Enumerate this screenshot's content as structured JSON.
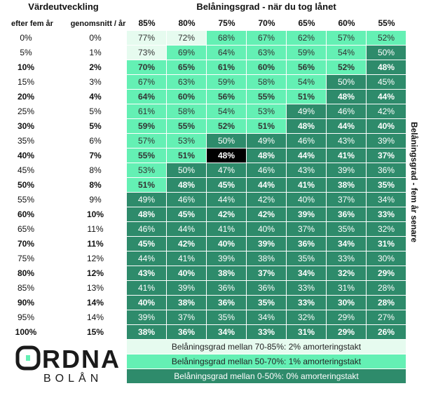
{
  "header": {
    "left_title": "Värdeutveckling",
    "right_title": "Belåningsgrad - när du tog lånet",
    "col_a_label": "efter fem år",
    "col_b_label": "genomsnitt / år",
    "side_label": "Belåningsgrad - fem år senare"
  },
  "chart_data": {
    "type": "heatmap",
    "title": "Belåningsgrad - när du tog lånet",
    "x_label": "Belåningsgrad - när du tog lånet",
    "y_label": "Värdeutveckling",
    "values_label": "Belåningsgrad - fem år senare",
    "columns": [
      "85%",
      "80%",
      "75%",
      "70%",
      "65%",
      "60%",
      "55%"
    ],
    "rows": [
      {
        "efter": "0%",
        "snitt": "0%",
        "bold": false,
        "values": [
          "77%",
          "72%",
          "68%",
          "67%",
          "62%",
          "57%",
          "52%"
        ]
      },
      {
        "efter": "5%",
        "snitt": "1%",
        "bold": false,
        "values": [
          "73%",
          "69%",
          "64%",
          "63%",
          "59%",
          "54%",
          "50%"
        ]
      },
      {
        "efter": "10%",
        "snitt": "2%",
        "bold": true,
        "values": [
          "70%",
          "65%",
          "61%",
          "60%",
          "56%",
          "52%",
          "48%"
        ]
      },
      {
        "efter": "15%",
        "snitt": "3%",
        "bold": false,
        "values": [
          "67%",
          "63%",
          "59%",
          "58%",
          "54%",
          "50%",
          "45%"
        ]
      },
      {
        "efter": "20%",
        "snitt": "4%",
        "bold": true,
        "values": [
          "64%",
          "60%",
          "56%",
          "55%",
          "51%",
          "48%",
          "44%"
        ]
      },
      {
        "efter": "25%",
        "snitt": "5%",
        "bold": false,
        "values": [
          "61%",
          "58%",
          "54%",
          "53%",
          "49%",
          "46%",
          "42%"
        ]
      },
      {
        "efter": "30%",
        "snitt": "5%",
        "bold": true,
        "values": [
          "59%",
          "55%",
          "52%",
          "51%",
          "48%",
          "44%",
          "40%"
        ]
      },
      {
        "efter": "35%",
        "snitt": "6%",
        "bold": false,
        "values": [
          "57%",
          "53%",
          "50%",
          "49%",
          "46%",
          "43%",
          "39%"
        ]
      },
      {
        "efter": "40%",
        "snitt": "7%",
        "bold": true,
        "values": [
          "55%",
          "51%",
          "48%",
          "48%",
          "44%",
          "41%",
          "37%"
        ]
      },
      {
        "efter": "45%",
        "snitt": "8%",
        "bold": false,
        "values": [
          "53%",
          "50%",
          "47%",
          "46%",
          "43%",
          "39%",
          "36%"
        ]
      },
      {
        "efter": "50%",
        "snitt": "8%",
        "bold": true,
        "values": [
          "51%",
          "48%",
          "45%",
          "44%",
          "41%",
          "38%",
          "35%"
        ]
      },
      {
        "efter": "55%",
        "snitt": "9%",
        "bold": false,
        "values": [
          "49%",
          "46%",
          "44%",
          "42%",
          "40%",
          "37%",
          "34%"
        ]
      },
      {
        "efter": "60%",
        "snitt": "10%",
        "bold": true,
        "values": [
          "48%",
          "45%",
          "42%",
          "42%",
          "39%",
          "36%",
          "33%"
        ]
      },
      {
        "efter": "65%",
        "snitt": "11%",
        "bold": false,
        "values": [
          "46%",
          "44%",
          "41%",
          "40%",
          "37%",
          "35%",
          "32%"
        ]
      },
      {
        "efter": "70%",
        "snitt": "11%",
        "bold": true,
        "values": [
          "45%",
          "42%",
          "40%",
          "39%",
          "36%",
          "34%",
          "31%"
        ]
      },
      {
        "efter": "75%",
        "snitt": "12%",
        "bold": false,
        "values": [
          "44%",
          "41%",
          "39%",
          "38%",
          "35%",
          "33%",
          "30%"
        ]
      },
      {
        "efter": "80%",
        "snitt": "12%",
        "bold": true,
        "values": [
          "43%",
          "40%",
          "38%",
          "37%",
          "34%",
          "32%",
          "29%"
        ]
      },
      {
        "efter": "85%",
        "snitt": "13%",
        "bold": false,
        "values": [
          "41%",
          "39%",
          "36%",
          "36%",
          "33%",
          "31%",
          "28%"
        ]
      },
      {
        "efter": "90%",
        "snitt": "14%",
        "bold": true,
        "values": [
          "40%",
          "38%",
          "36%",
          "35%",
          "33%",
          "30%",
          "28%"
        ]
      },
      {
        "efter": "95%",
        "snitt": "14%",
        "bold": false,
        "values": [
          "39%",
          "37%",
          "35%",
          "34%",
          "32%",
          "29%",
          "27%"
        ]
      },
      {
        "efter": "100%",
        "snitt": "15%",
        "bold": true,
        "values": [
          "38%",
          "36%",
          "34%",
          "33%",
          "31%",
          "29%",
          "26%"
        ]
      }
    ],
    "highlight": {
      "row": 8,
      "col": 2,
      "color": "#000000"
    },
    "color_bands": [
      {
        "band": "light",
        "range": "70-85%",
        "color": "#e6fbef"
      },
      {
        "band": "mid",
        "range": "50-70%",
        "color": "#64f0b4"
      },
      {
        "band": "dark",
        "range": "0-50%",
        "color": "#2e8b6b"
      }
    ]
  },
  "legend": {
    "l1": "Belåningsgrad mellan 70-85%: 2% amorteringstakt",
    "l2": "Belåningsgrad mellan 50-70%: 1% amorteringstakt",
    "l3": "Belåningsgrad mellan 0-50%: 0% amorteringstakt"
  },
  "logo": {
    "word": "ORDNA",
    "sub": "BOLÅN",
    "accent_color": "#64f0b4"
  }
}
